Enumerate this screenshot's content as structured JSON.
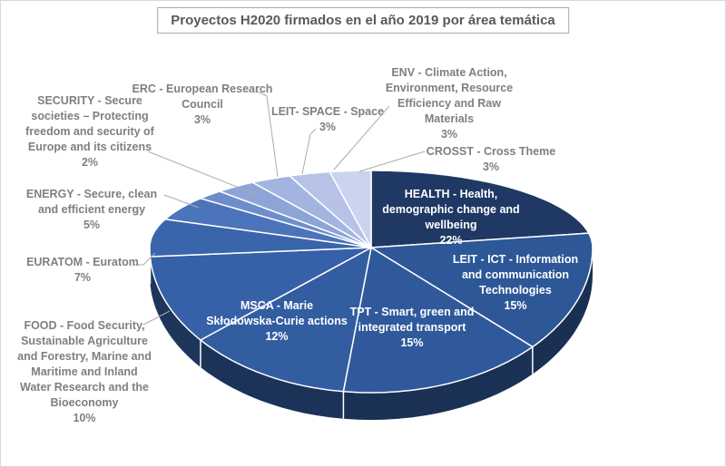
{
  "title": "Proyectos H2020 firmados en el año 2019 por área temática",
  "colors": {
    "title_text": "#595959",
    "title_border": "#a6a6a6",
    "outside_label_text": "#7f7f7f",
    "inside_label_text": "#ffffff",
    "leader_line": "#acacac",
    "slice_edge": "#ffffff",
    "chart_border": "#d9d9d9"
  },
  "chart_data": {
    "type": "pie",
    "style": "3d",
    "direction": "clockwise",
    "start_angle_deg": 0,
    "title": "Proyectos H2020 firmados en el año 2019 por área temática",
    "slices": [
      {
        "id": "health",
        "label": "HEALTH - Health, demographic change and wellbeing",
        "pct": 22,
        "color": "#1F3864",
        "label_inside": true,
        "label_lines": [
          "HEALTH - Health,",
          "demographic change and",
          "wellbeing"
        ]
      },
      {
        "id": "leit-ict",
        "label": "LEIT - ICT - Information and communication Technologies",
        "pct": 15,
        "color": "#2E5797",
        "label_inside": true,
        "label_lines": [
          "LEIT - ICT - Information",
          "and communication",
          "Technologies"
        ]
      },
      {
        "id": "tpt",
        "label": "TPT - Smart, green and integrated transport",
        "pct": 15,
        "color": "#30599B",
        "label_inside": true,
        "label_lines": [
          "TPT - Smart, green and",
          "integrated transport"
        ]
      },
      {
        "id": "msca",
        "label": "MSCA - Marie Skłodowska-Curie actions",
        "pct": 12,
        "color": "#335DA1",
        "label_inside": true,
        "label_lines": [
          "MSCA - Marie",
          "Skłodowska-Curie actions"
        ]
      },
      {
        "id": "food",
        "label": "FOOD - Food Security, Sustainable Agriculture and Forestry, Marine and Maritime and Inland Water Research and the Bioeconomy",
        "pct": 10,
        "color": "#3660A7",
        "label_inside": false,
        "label_lines": [
          "FOOD  - Food Security,",
          "Sustainable Agriculture",
          "and Forestry, Marine and",
          "Maritime and Inland",
          "Water Research and the",
          "Bioeconomy"
        ]
      },
      {
        "id": "euratom",
        "label": "EURATOM - Euratom",
        "pct": 7,
        "color": "#3A64AC",
        "label_inside": false,
        "label_lines": [
          "EURATOM - Euratom"
        ]
      },
      {
        "id": "energy",
        "label": "ENERGY - Secure, clean and efficient energy",
        "pct": 5,
        "color": "#4C74BC",
        "label_inside": false,
        "label_lines": [
          "ENERGY -  Secure, clean",
          "and efficient energy"
        ]
      },
      {
        "id": "security",
        "label": "SECURITY - Secure societies – Protecting freedom and security of Europe and its citizens",
        "pct": 2,
        "color": "#6E8DCB",
        "label_inside": false,
        "label_lines": [
          "SECURITY - Secure",
          "societies – Protecting",
          "freedom  and security of",
          "Europe and its citizens"
        ]
      },
      {
        "id": "erc",
        "label": "ERC - European Research Council",
        "pct": 3,
        "color": "#8DA4D6",
        "label_inside": false,
        "label_lines": [
          "ERC - European  Research",
          "Council"
        ]
      },
      {
        "id": "leit-space",
        "label": "LEIT- SPACE - Space",
        "pct": 3,
        "color": "#A2B4DF",
        "label_inside": false,
        "label_lines": [
          "LEIT- SPACE  - Space"
        ]
      },
      {
        "id": "env",
        "label": "ENV - Climate Action, Environment, Resource Efficiency and Raw Materials",
        "pct": 3,
        "color": "#B6C3E6",
        "label_inside": false,
        "label_lines": [
          "ENV - Climate Action,",
          "Environment, Resource",
          "Efficiency and Raw",
          "Materials"
        ]
      },
      {
        "id": "crosst",
        "label": "CROSST - Cross Theme",
        "pct": 3,
        "color": "#CBD4EE",
        "label_inside": false,
        "label_lines": [
          "CROSST - Cross Theme"
        ]
      }
    ]
  }
}
